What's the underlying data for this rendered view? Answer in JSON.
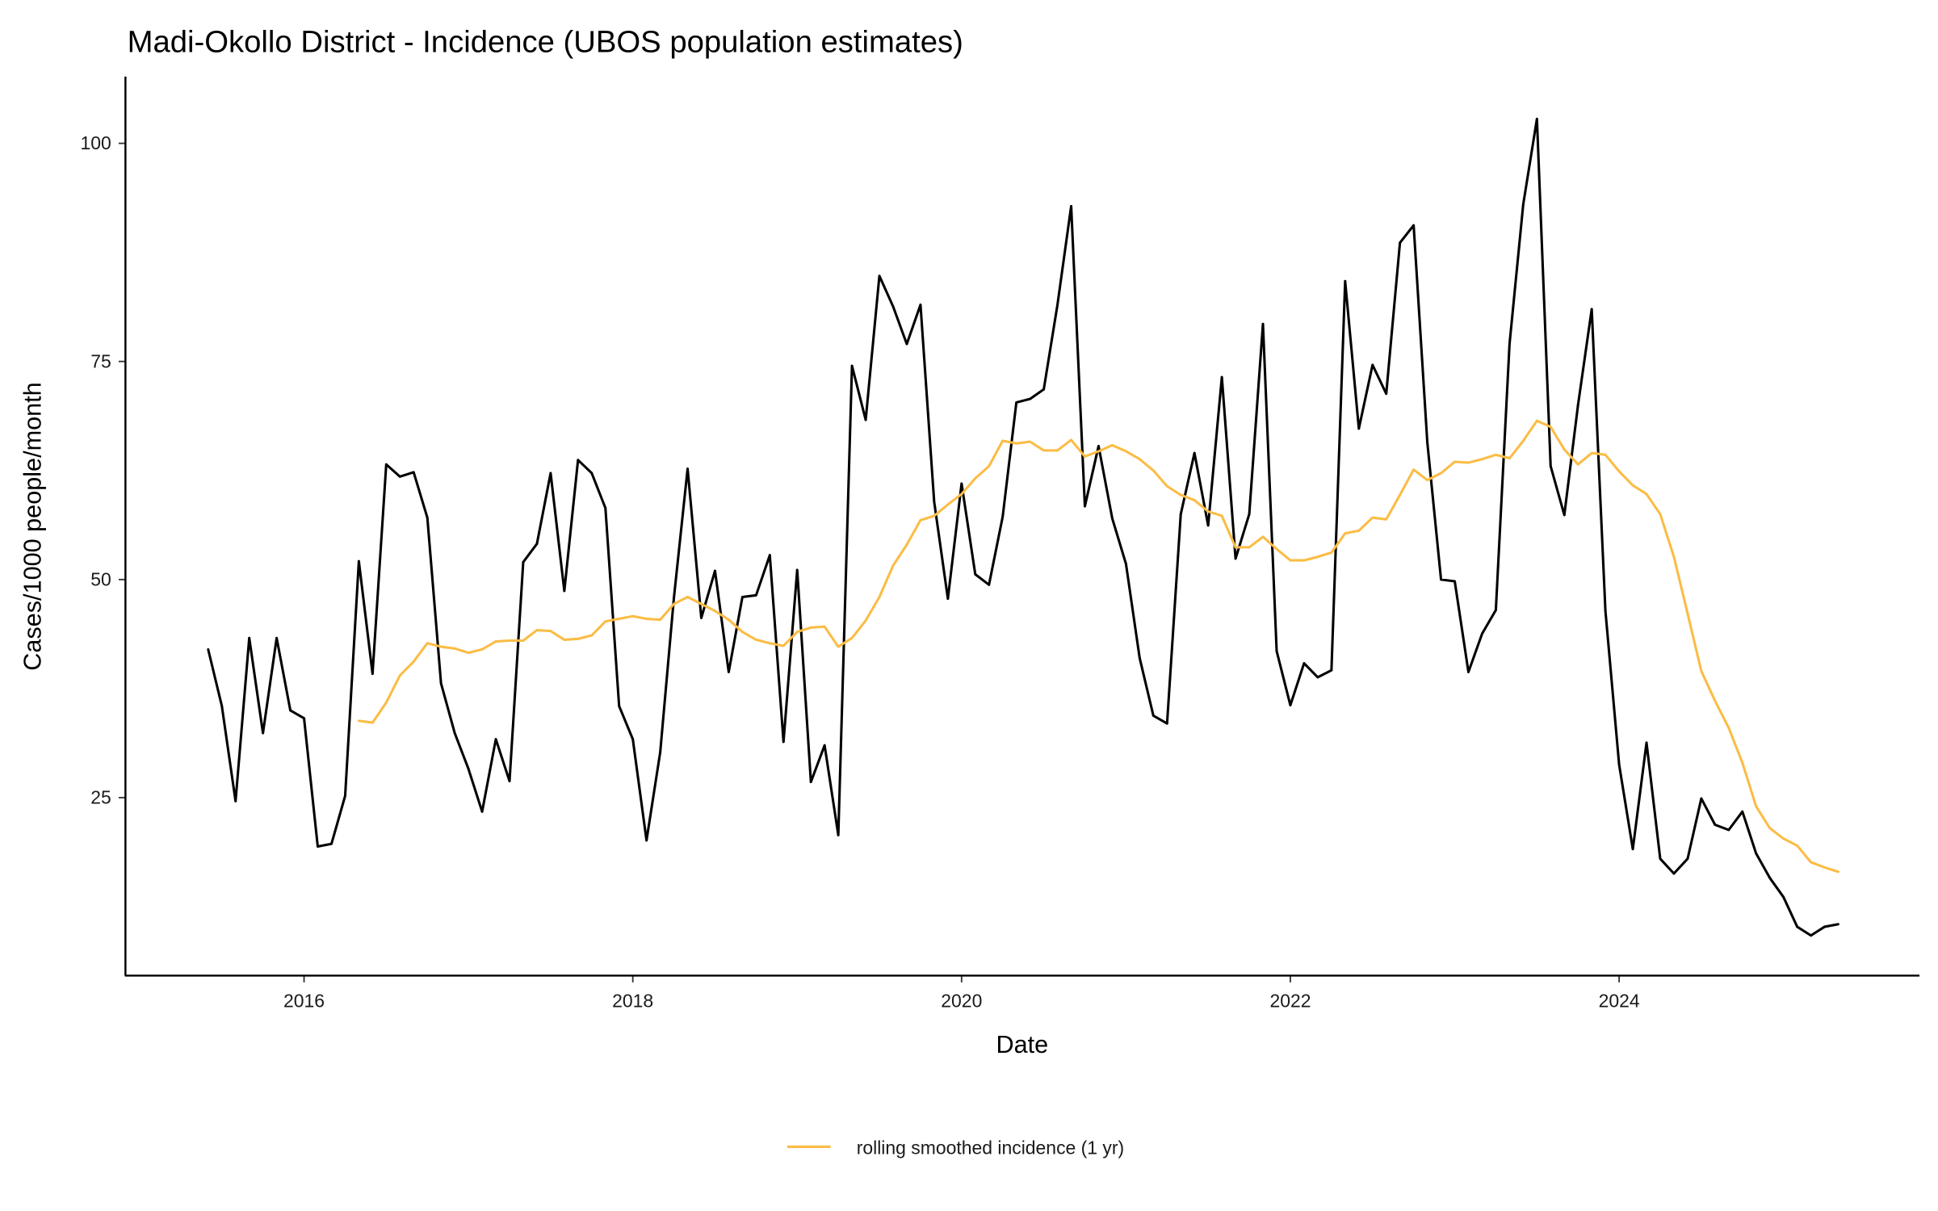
{
  "chart_data": {
    "type": "line",
    "title": "Madi-Okollo District - Incidence (UBOS population estimates)",
    "xlabel": "Date",
    "ylabel": "Cases/1000 people/month",
    "xlim": [
      2014.9,
      2025.8
    ],
    "ylim": [
      7.5,
      107.5
    ],
    "x_ticks": [
      "2016",
      "2018",
      "2020",
      "2022",
      "2024"
    ],
    "y_ticks": [
      "25",
      "50",
      "75",
      "100"
    ],
    "grid": false,
    "legend_position": "bottom",
    "colors": {
      "incidence": "#000000",
      "smoothed": "#FBBC45"
    },
    "series": [
      {
        "name": "incidence",
        "start": "2015-06",
        "frequency": "monthly",
        "values": [
          42,
          35.5,
          24.6,
          43.3,
          32.4,
          43.3,
          35,
          34.1,
          19.4,
          19.7,
          25.2,
          52.1,
          39.2,
          63.2,
          61.8,
          62.3,
          57.1,
          38.1,
          32.4,
          28.3,
          23.4,
          31.7,
          26.9,
          52,
          54.1,
          62.2,
          48.7,
          63.7,
          62.2,
          58.2,
          35.5,
          31.7,
          20.1,
          30.2,
          47.9,
          62.7,
          45.6,
          51,
          39.4,
          48,
          48.2,
          52.8,
          31.4,
          51.1,
          26.8,
          31,
          20.7,
          74.5,
          68.3,
          84.8,
          81.3,
          77,
          81.5,
          58.9,
          47.8,
          61,
          50.6,
          49.4,
          57.2,
          70.3,
          70.7,
          71.8,
          81.5,
          92.8,
          58.4,
          65.3,
          57,
          51.8,
          41,
          34.4,
          33.5,
          57.5,
          64.5,
          56.2,
          73.2,
          52.4,
          57.5,
          79.3,
          41.8,
          35.6,
          40.4,
          38.8,
          39.6,
          84.2,
          67.3,
          74.6,
          71.3,
          88.6,
          90.6,
          65.7,
          50,
          49.8,
          39.4,
          43.8,
          46.5,
          77,
          93,
          102.8,
          63,
          57.4,
          70,
          81,
          46.4,
          28.8,
          19.1,
          31.3,
          18,
          16.3,
          18,
          24.9,
          21.9,
          21.3,
          23.4,
          18.6,
          15.8,
          13.6,
          10.2,
          9.2,
          10.2,
          10.5
        ]
      },
      {
        "name": "rolling smoothed incidence (1 yr)",
        "start": "2016-05",
        "frequency": "monthly",
        "values": [
          33.8,
          33.6,
          35.9,
          39,
          40.6,
          42.7,
          42.3,
          42.1,
          41.6,
          42,
          42.9,
          43,
          43,
          44.2,
          44.1,
          43.1,
          43.2,
          43.6,
          45.2,
          45.5,
          45.8,
          45.5,
          45.4,
          47.2,
          48,
          47.2,
          46.4,
          45.4,
          44,
          43.1,
          42.7,
          42.4,
          44,
          44.5,
          44.6,
          42.3,
          43.3,
          45.3,
          48,
          51.6,
          54,
          56.8,
          57.3,
          58.6,
          59.8,
          61.6,
          63,
          65.9,
          65.6,
          65.8,
          64.8,
          64.8,
          66,
          64.1,
          64.7,
          65.4,
          64.7,
          63.8,
          62.5,
          60.7,
          59.7,
          59.1,
          57.8,
          57.3,
          53.7,
          53.7,
          54.9,
          53.5,
          52.2,
          52.2,
          52.6,
          53.1,
          55.3,
          55.6,
          57.1,
          56.9,
          59.7,
          62.6,
          61.4,
          62.2,
          63.5,
          63.4,
          63.8,
          64.3,
          63.9,
          65.9,
          68.2,
          67.5,
          64.9,
          63.2,
          64.5,
          64.3,
          62.4,
          60.8,
          59.8,
          57.5,
          52.6,
          46.1,
          39.5,
          36.1,
          33,
          29,
          24,
          21.5,
          20.3,
          19.5,
          17.6,
          17,
          16.5
        ]
      }
    ],
    "legend": [
      "rolling smoothed incidence (1 yr)"
    ]
  }
}
